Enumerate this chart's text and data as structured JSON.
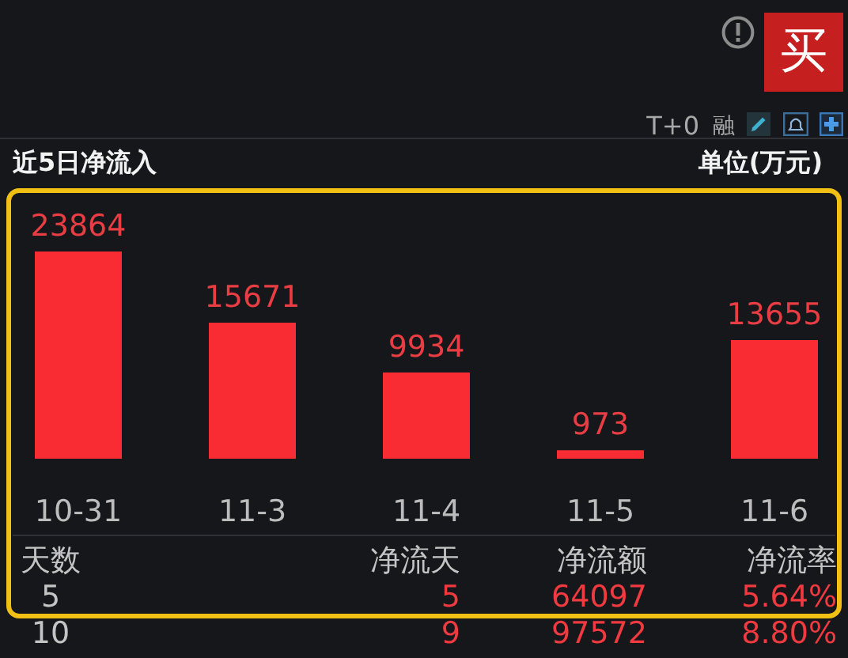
{
  "chart_data": {
    "type": "bar",
    "title": "近5日净流入",
    "subtitle": "单位(万元)",
    "categories": [
      "10-31",
      "11-3",
      "11-4",
      "11-5",
      "11-6"
    ],
    "values": [
      23864,
      15671,
      9934,
      973,
      13655
    ],
    "color": "#f92b33",
    "data_labels": true,
    "annotations": [
      "买",
      "T+0",
      "融",
      "天数",
      "净流天",
      "净流额",
      "净流率",
      "5",
      "5",
      "64097",
      "5.64%",
      "10",
      "9",
      "97572",
      "8.80%"
    ]
  }
}
